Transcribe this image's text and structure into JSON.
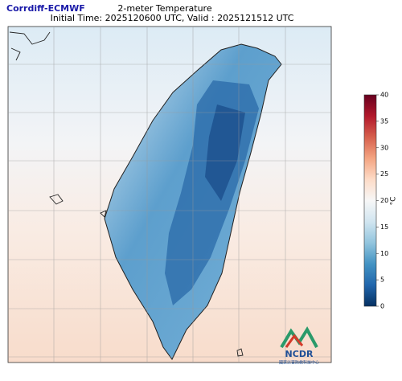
{
  "header": {
    "source": "Corrdiff-ECMWF",
    "title": "2-meter Temperature",
    "subtitle": "Initial Time: 2025120600 UTC, Valid : 2025121512 UTC"
  },
  "colorbar": {
    "label": "°C",
    "lim": [
      0,
      40
    ],
    "ticks": [
      0,
      5,
      10,
      15,
      20,
      25,
      30,
      35,
      40
    ]
  },
  "logo": {
    "name": "NCDR",
    "subtitle": "國家災害防救科技中心"
  }
}
